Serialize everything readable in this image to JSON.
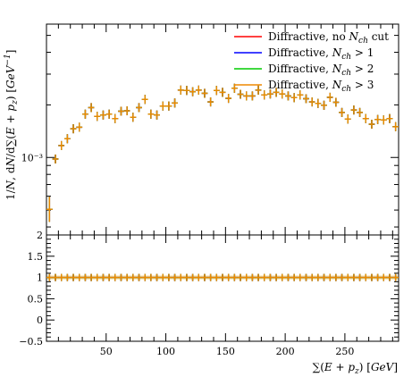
{
  "chart_data": {
    "type": "scatter",
    "xlabel": "∑(E + p_z) [GeV]",
    "ylabel": "1/N, dN/d∑(E + p_z) [GeV⁻¹]",
    "xlim": [
      0,
      295
    ],
    "main": {
      "y_scale": "log",
      "ylim": [
        0.00036,
        0.0058
      ],
      "y_tick_labels": [
        "10⁻³"
      ],
      "y_ticks": [
        0.001
      ]
    },
    "ratio": {
      "ylim": [
        -0.5,
        2
      ],
      "y_ticks": [
        -0.5,
        0,
        0.5,
        1,
        1.5,
        2
      ],
      "y_tick_labels": [
        "−0.5",
        "0",
        "0.5",
        "1",
        "1.5",
        "2"
      ],
      "reference": 1
    },
    "x_ticks": [
      50,
      100,
      150,
      200,
      250
    ],
    "x_tick_labels": [
      "50",
      "100",
      "150",
      "200",
      "250"
    ],
    "bin_width": 5,
    "x": [
      2.5,
      7.5,
      12.5,
      17.5,
      22.5,
      27.5,
      32.5,
      37.5,
      42.5,
      47.5,
      52.5,
      57.5,
      62.5,
      67.5,
      72.5,
      77.5,
      82.5,
      87.5,
      92.5,
      97.5,
      102.5,
      107.5,
      112.5,
      117.5,
      122.5,
      127.5,
      132.5,
      137.5,
      142.5,
      147.5,
      152.5,
      157.5,
      162.5,
      167.5,
      172.5,
      177.5,
      182.5,
      187.5,
      192.5,
      197.5,
      202.5,
      207.5,
      212.5,
      217.5,
      222.5,
      227.5,
      232.5,
      237.5,
      242.5,
      247.5,
      252.5,
      257.5,
      262.5,
      267.5,
      272.5,
      277.5,
      282.5,
      287.5,
      292.5
    ],
    "legend_position": "top-right",
    "series": [
      {
        "name": "Diffractive, no N_ch cut",
        "color": "#ff0000",
        "values": [
          0.000505,
          0.00098,
          0.00117,
          0.00128,
          0.00146,
          0.00149,
          0.00177,
          0.00193,
          0.00172,
          0.00175,
          0.00177,
          0.00167,
          0.00184,
          0.00185,
          0.0017,
          0.00193,
          0.00215,
          0.00177,
          0.00175,
          0.00197,
          0.00197,
          0.00205,
          0.00243,
          0.00242,
          0.00238,
          0.00243,
          0.00233,
          0.00208,
          0.00242,
          0.00236,
          0.00218,
          0.00249,
          0.0023,
          0.00225,
          0.00225,
          0.00243,
          0.00228,
          0.00231,
          0.00236,
          0.00231,
          0.00225,
          0.0022,
          0.00228,
          0.00217,
          0.00208,
          0.00204,
          0.00199,
          0.00221,
          0.00207,
          0.00181,
          0.00166,
          0.00187,
          0.00181,
          0.00167,
          0.00155,
          0.00165,
          0.00164,
          0.00167,
          0.0015
        ]
      },
      {
        "name": "Diffractive, N_ch > 1",
        "color": "#0000ff",
        "values": [
          0.000505,
          0.00098,
          0.00117,
          0.00128,
          0.00146,
          0.00149,
          0.00177,
          0.00193,
          0.00172,
          0.00175,
          0.00177,
          0.00167,
          0.00184,
          0.00185,
          0.0017,
          0.00193,
          0.00215,
          0.00177,
          0.00175,
          0.00197,
          0.00197,
          0.00205,
          0.00243,
          0.00242,
          0.00238,
          0.00243,
          0.00233,
          0.00208,
          0.00242,
          0.00236,
          0.00218,
          0.00249,
          0.0023,
          0.00225,
          0.00225,
          0.00243,
          0.00228,
          0.00231,
          0.00236,
          0.00231,
          0.00225,
          0.0022,
          0.00228,
          0.00217,
          0.00208,
          0.00204,
          0.00199,
          0.00221,
          0.00207,
          0.00181,
          0.00166,
          0.00187,
          0.00181,
          0.00167,
          0.00155,
          0.00165,
          0.00164,
          0.00167,
          0.0015
        ]
      },
      {
        "name": "Diffractive, N_ch > 2",
        "color": "#00cc00",
        "values": [
          0.000505,
          0.00098,
          0.00117,
          0.00128,
          0.00146,
          0.00149,
          0.00177,
          0.00193,
          0.00172,
          0.00175,
          0.00177,
          0.00167,
          0.00184,
          0.00185,
          0.0017,
          0.00193,
          0.00215,
          0.00177,
          0.00175,
          0.00197,
          0.00197,
          0.00205,
          0.00243,
          0.00242,
          0.00238,
          0.00243,
          0.00233,
          0.00208,
          0.00242,
          0.00236,
          0.00218,
          0.00249,
          0.0023,
          0.00225,
          0.00225,
          0.00243,
          0.00228,
          0.00231,
          0.00236,
          0.00231,
          0.00225,
          0.0022,
          0.00228,
          0.00217,
          0.00208,
          0.00204,
          0.00199,
          0.00221,
          0.00207,
          0.00181,
          0.00166,
          0.00187,
          0.00181,
          0.00167,
          0.00155,
          0.00165,
          0.00164,
          0.00167,
          0.0015
        ]
      },
      {
        "name": "Diffractive, N_ch > 3",
        "color": "#ee8800",
        "values": [
          0.000505,
          0.00098,
          0.00117,
          0.00128,
          0.00146,
          0.00149,
          0.00177,
          0.00193,
          0.00172,
          0.00175,
          0.00177,
          0.00167,
          0.00184,
          0.00185,
          0.0017,
          0.00193,
          0.00215,
          0.00177,
          0.00175,
          0.00197,
          0.00197,
          0.00205,
          0.00243,
          0.00242,
          0.00238,
          0.00243,
          0.00233,
          0.00208,
          0.00242,
          0.00236,
          0.00218,
          0.00249,
          0.0023,
          0.00225,
          0.00225,
          0.00243,
          0.00228,
          0.00231,
          0.00236,
          0.00231,
          0.00225,
          0.0022,
          0.00228,
          0.00217,
          0.00208,
          0.00204,
          0.00199,
          0.00221,
          0.00207,
          0.00181,
          0.00166,
          0.00187,
          0.00181,
          0.00167,
          0.00155,
          0.00165,
          0.00164,
          0.00167,
          0.0015
        ]
      }
    ],
    "legend": [
      {
        "pre": "Diffractive, no ",
        "sym": "N",
        "sub": "ch",
        "post": " cut"
      },
      {
        "pre": "Diffractive, ",
        "sym": "N",
        "sub": "ch",
        "post": " > 1"
      },
      {
        "pre": "Diffractive, ",
        "sym": "N",
        "sub": "ch",
        "post": " > 2"
      },
      {
        "pre": "Diffractive, ",
        "sym": "N",
        "sub": "ch",
        "post": " > 3"
      }
    ]
  }
}
